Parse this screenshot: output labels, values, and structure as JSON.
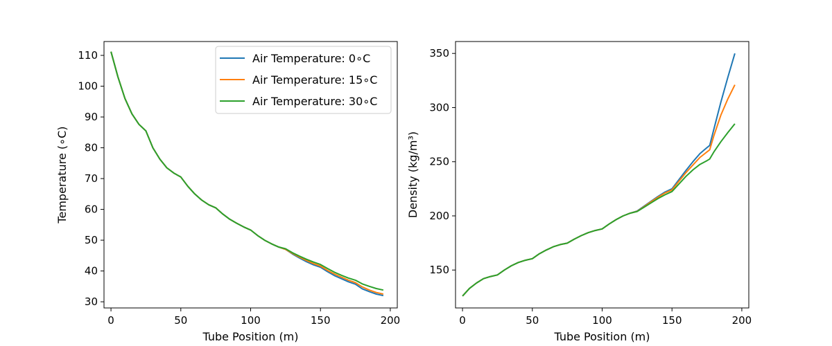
{
  "chart_data": [
    {
      "type": "line",
      "xlabel": "Tube Position (m)",
      "ylabel": "Temperature (∘C)",
      "xlim": [
        -5,
        205
      ],
      "ylim": [
        28,
        114.5
      ],
      "xticks": [
        0,
        50,
        100,
        150,
        200
      ],
      "yticks": [
        30,
        40,
        50,
        60,
        70,
        80,
        90,
        100,
        110
      ],
      "grid": false,
      "legend": "top-right",
      "series": [
        {
          "name": "Air Temperature: 0∘C",
          "color": "#1f77b4",
          "x": [
            0,
            5,
            10,
            15,
            20,
            25,
            30,
            35,
            40,
            45,
            50,
            55,
            60,
            65,
            70,
            75,
            80,
            85,
            90,
            95,
            100,
            105,
            110,
            115,
            120,
            125,
            130,
            135,
            140,
            145,
            150,
            155,
            160,
            165,
            170,
            175,
            180,
            185,
            190,
            195
          ],
          "y": [
            111.2,
            103.0,
            96.0,
            91.0,
            87.6,
            85.5,
            80.0,
            76.3,
            73.5,
            71.8,
            70.5,
            67.5,
            65.0,
            63.0,
            61.5,
            60.5,
            58.5,
            56.8,
            55.5,
            54.3,
            53.3,
            51.5,
            50.0,
            48.8,
            47.8,
            47.0,
            45.5,
            44.2,
            43.0,
            42.0,
            41.2,
            39.8,
            38.5,
            37.5,
            36.5,
            35.7,
            34.2,
            33.3,
            32.5,
            32.0
          ]
        },
        {
          "name": "Air Temperature: 15∘C",
          "color": "#ff7f0e",
          "x": [
            0,
            5,
            10,
            15,
            20,
            25,
            30,
            35,
            40,
            45,
            50,
            55,
            60,
            65,
            70,
            75,
            80,
            85,
            90,
            95,
            100,
            105,
            110,
            115,
            120,
            125,
            130,
            135,
            140,
            145,
            150,
            155,
            160,
            165,
            170,
            175,
            180,
            185,
            190,
            195
          ],
          "y": [
            111.2,
            103.0,
            96.0,
            91.0,
            87.6,
            85.5,
            80.0,
            76.3,
            73.5,
            71.8,
            70.5,
            67.5,
            65.0,
            63.0,
            61.5,
            60.5,
            58.5,
            56.8,
            55.5,
            54.3,
            53.3,
            51.5,
            50.0,
            48.8,
            47.8,
            47.0,
            45.7,
            44.5,
            43.4,
            42.4,
            41.6,
            40.2,
            39.0,
            38.0,
            37.0,
            36.2,
            34.8,
            33.8,
            33.0,
            32.5
          ]
        },
        {
          "name": "Air Temperature: 30∘C",
          "color": "#2ca02c",
          "x": [
            0,
            5,
            10,
            15,
            20,
            25,
            30,
            35,
            40,
            45,
            50,
            55,
            60,
            65,
            70,
            75,
            80,
            85,
            90,
            95,
            100,
            105,
            110,
            115,
            120,
            125,
            130,
            135,
            140,
            145,
            150,
            155,
            160,
            165,
            170,
            175,
            180,
            185,
            190,
            195
          ],
          "y": [
            111.2,
            103.0,
            96.0,
            91.0,
            87.6,
            85.5,
            80.0,
            76.3,
            73.5,
            71.8,
            70.5,
            67.5,
            65.0,
            63.0,
            61.5,
            60.5,
            58.5,
            56.8,
            55.5,
            54.3,
            53.3,
            51.5,
            50.0,
            48.8,
            47.8,
            47.2,
            45.9,
            44.8,
            43.8,
            42.9,
            42.1,
            40.8,
            39.6,
            38.6,
            37.7,
            37.0,
            35.8,
            35.0,
            34.3,
            33.8
          ]
        }
      ]
    },
    {
      "type": "line",
      "xlabel": "Tube Position (m)",
      "ylabel": "Density (kg/m³)",
      "xlim": [
        -5,
        205
      ],
      "ylim": [
        115,
        361
      ],
      "xticks": [
        0,
        50,
        100,
        150,
        200
      ],
      "yticks": [
        150,
        200,
        250,
        300,
        350
      ],
      "grid": false,
      "series": [
        {
          "color": "#1f77b4",
          "x": [
            0,
            5,
            10,
            15,
            20,
            25,
            30,
            35,
            40,
            45,
            50,
            55,
            60,
            65,
            70,
            75,
            80,
            85,
            90,
            95,
            100,
            105,
            110,
            115,
            120,
            125,
            130,
            135,
            140,
            145,
            150,
            155,
            160,
            165,
            170,
            175,
            177,
            180,
            185,
            190,
            195
          ],
          "y": [
            126,
            133,
            138,
            142,
            144,
            145.5,
            150,
            154,
            157,
            159,
            160.5,
            165,
            168.5,
            171.5,
            173.5,
            174.8,
            178.5,
            181.8,
            184.5,
            186.5,
            188,
            192.5,
            196.5,
            200,
            202.5,
            204.5,
            209,
            213.5,
            218,
            222,
            225,
            233.5,
            242,
            250,
            257.5,
            263,
            265,
            280,
            305,
            328,
            350
          ]
        },
        {
          "color": "#ff7f0e",
          "x": [
            0,
            5,
            10,
            15,
            20,
            25,
            30,
            35,
            40,
            45,
            50,
            55,
            60,
            65,
            70,
            75,
            80,
            85,
            90,
            95,
            100,
            105,
            110,
            115,
            120,
            125,
            130,
            135,
            140,
            145,
            150,
            155,
            160,
            165,
            170,
            175,
            177,
            180,
            185,
            190,
            195
          ],
          "y": [
            126,
            133,
            138,
            142,
            144,
            145.5,
            150,
            154,
            157,
            159,
            160.5,
            165,
            168.5,
            171.5,
            173.5,
            174.8,
            178.5,
            181.8,
            184.5,
            186.5,
            188,
            192.5,
            196.5,
            200,
            202.5,
            204.2,
            208.5,
            213,
            217.3,
            221.2,
            224,
            232,
            240,
            247,
            254,
            259,
            261,
            274,
            293,
            308,
            321
          ]
        },
        {
          "color": "#2ca02c",
          "x": [
            0,
            5,
            10,
            15,
            20,
            25,
            30,
            35,
            40,
            45,
            50,
            55,
            60,
            65,
            70,
            75,
            80,
            85,
            90,
            95,
            100,
            105,
            110,
            115,
            120,
            125,
            130,
            135,
            140,
            145,
            150,
            155,
            160,
            165,
            170,
            175,
            177,
            180,
            185,
            190,
            195
          ],
          "y": [
            126,
            133,
            138,
            142,
            144,
            145.5,
            150,
            154,
            157,
            159,
            160.5,
            165,
            168.5,
            171.5,
            173.5,
            174.8,
            178.5,
            181.8,
            184.5,
            186.5,
            188,
            192.5,
            196.5,
            200,
            202.5,
            204,
            208,
            212,
            216,
            219.5,
            222.5,
            229.5,
            236.5,
            242.5,
            247.5,
            251,
            252.5,
            259,
            268.5,
            277,
            285
          ]
        }
      ]
    }
  ]
}
